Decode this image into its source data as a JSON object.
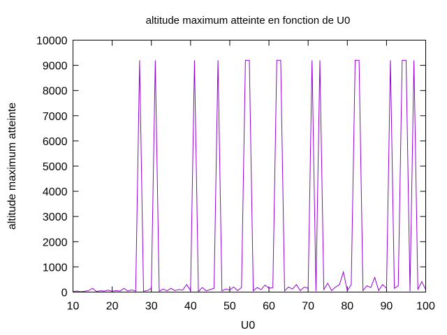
{
  "chart_data": {
    "type": "line",
    "title": "altitude maximum atteinte en fonction de U0",
    "xlabel": "U0",
    "ylabel": "altitude maximum atteinte",
    "xlim": [
      10,
      100
    ],
    "ylim": [
      0,
      10000
    ],
    "xticks": [
      10,
      20,
      30,
      40,
      50,
      60,
      70,
      80,
      90,
      100
    ],
    "yticks": [
      0,
      1000,
      2000,
      3000,
      4000,
      5000,
      6000,
      7000,
      8000,
      9000,
      10000
    ],
    "grid": false,
    "line_color": "#9400d3",
    "series": [
      {
        "x": [
          10,
          11,
          12,
          13,
          14,
          15,
          16,
          17,
          18,
          19,
          20,
          21,
          22,
          23,
          24,
          25,
          26,
          27,
          28,
          29,
          30,
          31,
          32,
          33,
          34,
          35,
          36,
          37,
          38,
          39,
          40,
          41,
          42,
          43,
          44,
          45,
          46,
          47,
          48,
          49,
          50,
          51,
          52,
          53,
          54,
          55,
          56,
          57,
          58,
          59,
          60,
          61,
          62,
          63,
          64,
          65,
          66,
          67,
          68,
          69,
          70,
          71,
          72,
          73,
          74,
          75,
          76,
          77,
          78,
          79,
          80,
          81,
          82,
          83,
          84,
          85,
          86,
          87,
          88,
          89,
          90,
          91,
          92,
          93,
          94,
          95,
          96,
          97,
          98,
          99,
          100
        ],
        "y": [
          20,
          40,
          15,
          30,
          60,
          150,
          20,
          50,
          40,
          80,
          30,
          60,
          40,
          150,
          40,
          90,
          30,
          9200,
          30,
          60,
          150,
          9200,
          30,
          120,
          50,
          150,
          60,
          100,
          80,
          300,
          60,
          9200,
          20,
          180,
          50,
          100,
          150,
          9200,
          50,
          120,
          80,
          200,
          60,
          180,
          9200,
          9200,
          50,
          180,
          100,
          280,
          150,
          180,
          9200,
          9200,
          50,
          200,
          120,
          300,
          60,
          200,
          150,
          9200,
          30,
          9200,
          100,
          350,
          60,
          200,
          300,
          800,
          50,
          300,
          9200,
          9200,
          60,
          250,
          180,
          580,
          60,
          300,
          150,
          9200,
          150,
          250,
          9200,
          9200,
          30,
          9200,
          100,
          420,
          100
        ]
      }
    ]
  }
}
